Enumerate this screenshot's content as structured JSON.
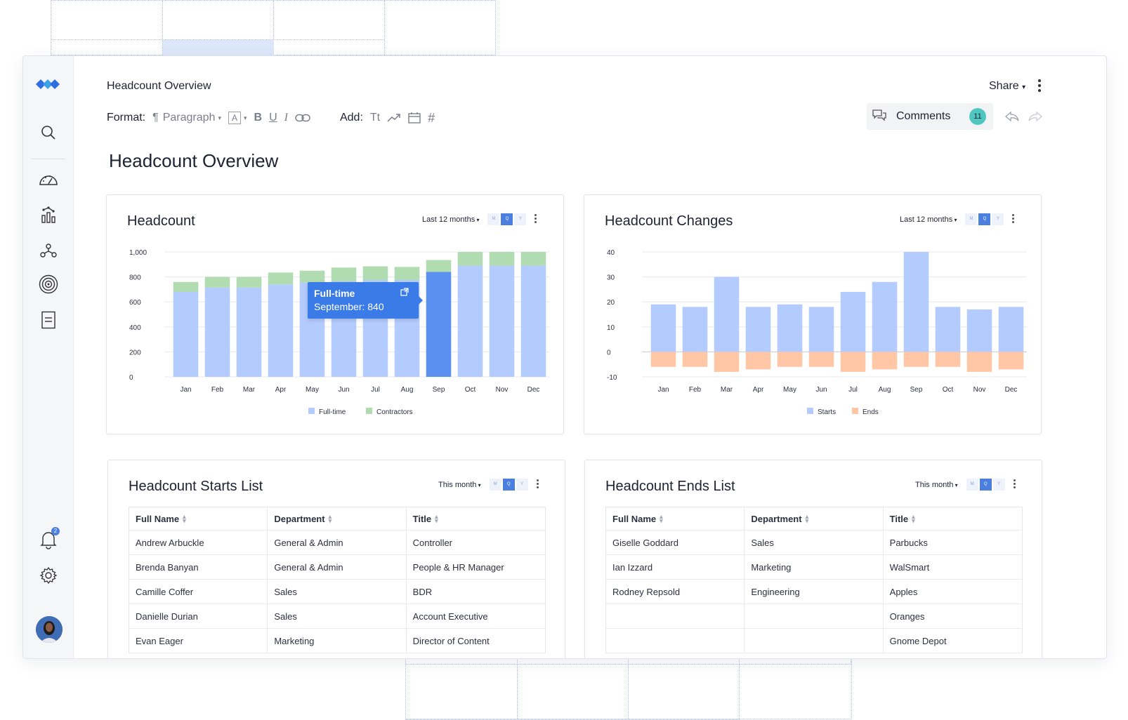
{
  "doc_title": "Headcount Overview",
  "share_label": "Share",
  "format": {
    "label": "Format:",
    "paragraph": "Paragraph",
    "font_a": "A"
  },
  "add": {
    "label": "Add:",
    "text_tool": "Tt"
  },
  "comments": {
    "label": "Comments",
    "count": "11"
  },
  "notifications_count": "2",
  "page_title": "Headcount Overview",
  "colors": {
    "fulltime": "#b3cbff",
    "fulltime_active": "#5b8ff0",
    "contractors": "#b1dbb0",
    "starts": "#b3cbff",
    "ends": "#ffc7a6",
    "accent": "#3a7be8",
    "teal": "#4fc7c0"
  },
  "headcount_card": {
    "title": "Headcount",
    "period": "Last 12 months",
    "seg": [
      "M",
      "Q",
      "Y"
    ],
    "tooltip": {
      "title": "Full-time",
      "text": "September: 840"
    }
  },
  "changes_card": {
    "title": "Headcount Changes",
    "period": "Last 12 months",
    "seg": [
      "M",
      "Q",
      "Y"
    ]
  },
  "starts_card": {
    "title": "Headcount Starts List",
    "period": "This month",
    "seg": [
      "M",
      "Q",
      "Y"
    ],
    "columns": [
      "Full Name",
      "Department",
      "Title"
    ],
    "rows": [
      [
        "Andrew Arbuckle",
        "General & Admin",
        "Controller"
      ],
      [
        "Brenda Banyan",
        "General & Admin",
        "People & HR Manager"
      ],
      [
        "Camille Coffer",
        "Sales",
        "BDR"
      ],
      [
        "Danielle Durian",
        "Sales",
        "Account Executive"
      ],
      [
        "Evan Eager",
        "Marketing",
        "Director of Content"
      ]
    ]
  },
  "ends_card": {
    "title": "Headcount Ends List",
    "period": "This month",
    "seg": [
      "M",
      "Q",
      "Y"
    ],
    "columns": [
      "Full Name",
      "Department",
      "Title"
    ],
    "rows": [
      [
        "Giselle Goddard",
        "Sales",
        "Parbucks"
      ],
      [
        "Ian Izzard",
        "Marketing",
        "WalSmart"
      ],
      [
        "Rodney Repsold",
        "Engineering",
        "Apples"
      ],
      [
        "",
        "",
        "Oranges"
      ],
      [
        "",
        "",
        "Gnome Depot"
      ]
    ]
  },
  "chart_data": [
    {
      "type": "bar",
      "stacked": true,
      "categories": [
        "Jan",
        "Feb",
        "Mar",
        "Apr",
        "May",
        "Jun",
        "Jul",
        "Aug",
        "Sep",
        "Oct",
        "Nov",
        "Dec"
      ],
      "series": [
        {
          "name": "Full-time",
          "values": [
            680,
            715,
            715,
            740,
            755,
            765,
            775,
            775,
            840,
            890,
            890,
            890
          ]
        },
        {
          "name": "Contractors",
          "values": [
            80,
            85,
            85,
            95,
            95,
            110,
            110,
            105,
            95,
            110,
            110,
            110
          ]
        }
      ],
      "ylim": [
        0,
        1000
      ],
      "yticks": [
        "0",
        "200",
        "400",
        "600",
        "800",
        "1,000"
      ],
      "highlight_index": 8,
      "grid": true,
      "legend": "bottom"
    },
    {
      "type": "bar",
      "categories": [
        "Jan",
        "Feb",
        "Mar",
        "Apr",
        "May",
        "Jun",
        "Jul",
        "Aug",
        "Sep",
        "Oct",
        "Nov",
        "Dec"
      ],
      "series": [
        {
          "name": "Starts",
          "values": [
            19,
            18,
            30,
            18,
            19,
            18,
            24,
            28,
            40,
            18,
            17,
            18
          ]
        },
        {
          "name": "Ends",
          "values": [
            -6,
            -6,
            -8,
            -7,
            -6,
            -6,
            -8,
            -7,
            -6,
            -6,
            -8,
            -7
          ]
        }
      ],
      "ylim": [
        -10,
        40
      ],
      "yticks": [
        "-10",
        "0",
        "10",
        "20",
        "30",
        "40"
      ],
      "grid": true,
      "legend": "bottom"
    }
  ]
}
